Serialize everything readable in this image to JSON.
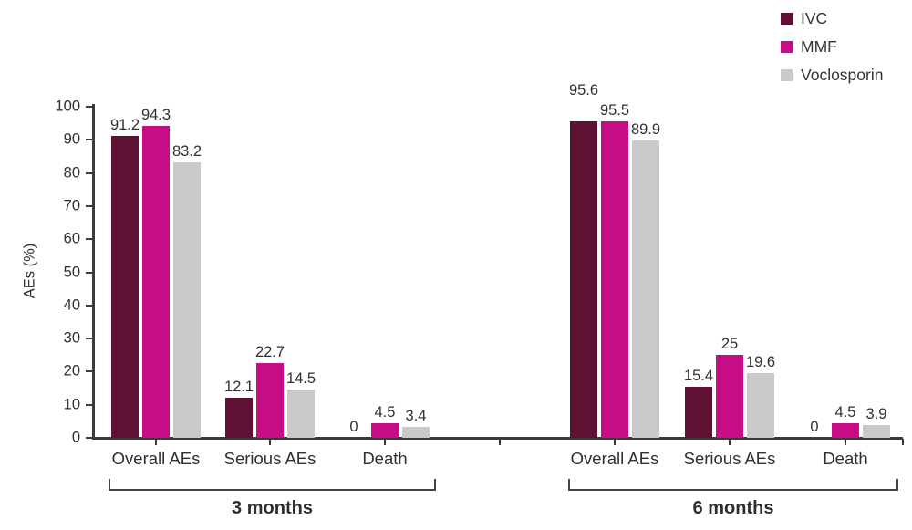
{
  "chart_data": {
    "type": "bar",
    "title": "",
    "ylabel": "AEs (%)",
    "ylim": [
      0,
      100
    ],
    "ytick_interval": 10,
    "yticks": [
      0,
      10,
      20,
      30,
      40,
      50,
      60,
      70,
      80,
      90,
      100
    ],
    "grid": false,
    "legend_position": "top-right",
    "group_labels": [
      "3 months",
      "6 months"
    ],
    "categories_per_group": [
      "Overall AEs",
      "Serious AEs",
      "Death"
    ],
    "series": [
      {
        "name": "IVC",
        "color": "#5e1132",
        "values": [
          [
            91.2,
            12.1,
            0
          ],
          [
            95.6,
            15.4,
            0
          ]
        ]
      },
      {
        "name": "MMF",
        "color": "#c60d86",
        "values": [
          [
            94.3,
            22.7,
            4.5
          ],
          [
            95.5,
            25,
            4.5
          ]
        ]
      },
      {
        "name": "Voclosporin",
        "color": "#c9c9c9",
        "values": [
          [
            83.2,
            14.5,
            3.4
          ],
          [
            89.9,
            19.6,
            3.9
          ]
        ]
      }
    ]
  }
}
